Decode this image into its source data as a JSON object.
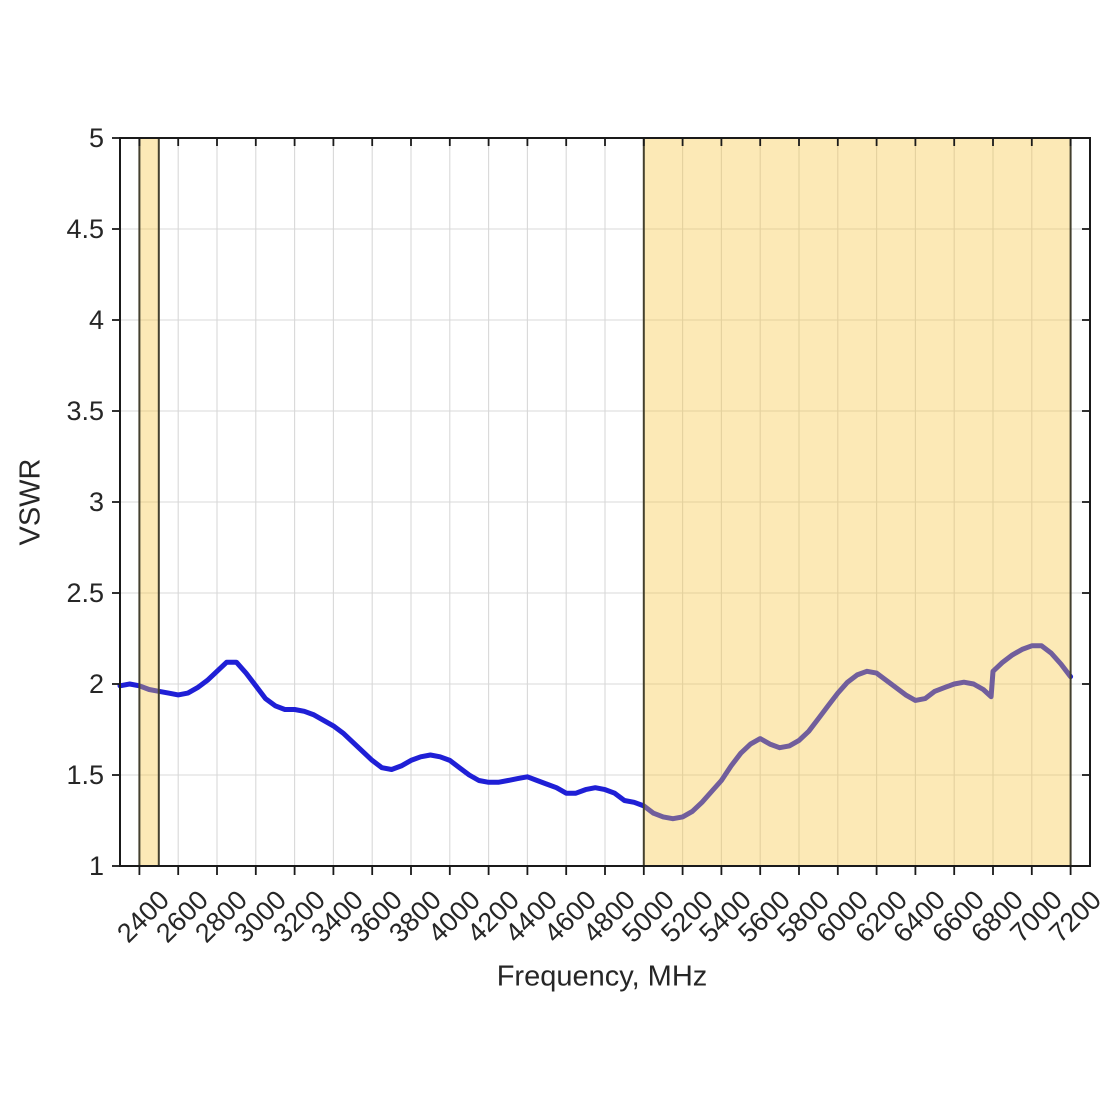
{
  "page": {
    "background": "#ffffff"
  },
  "chart_data": {
    "type": "line",
    "title": "",
    "xlabel": "Frequency, MHz",
    "ylabel": "VSWR",
    "xlim": [
      2300,
      7300
    ],
    "ylim": [
      1,
      5
    ],
    "xticks": [
      2400,
      2600,
      2800,
      3000,
      3200,
      3400,
      3600,
      3800,
      4000,
      4200,
      4400,
      4600,
      4800,
      5000,
      5200,
      5400,
      5600,
      5800,
      6000,
      6200,
      6400,
      6600,
      6800,
      7000,
      7200
    ],
    "yticks": [
      1,
      1.5,
      2,
      2.5,
      3,
      3.5,
      4,
      4.5,
      5
    ],
    "grid": true,
    "legend": "none",
    "series": [
      {
        "name": "VSWR",
        "color": "#1f1fd6",
        "width": 5,
        "points": [
          [
            2300,
            1.99
          ],
          [
            2350,
            2.0
          ],
          [
            2400,
            1.99
          ],
          [
            2450,
            1.97
          ],
          [
            2500,
            1.96
          ],
          [
            2550,
            1.95
          ],
          [
            2600,
            1.94
          ],
          [
            2650,
            1.95
          ],
          [
            2700,
            1.98
          ],
          [
            2750,
            2.02
          ],
          [
            2800,
            2.07
          ],
          [
            2850,
            2.12
          ],
          [
            2900,
            2.12
          ],
          [
            2950,
            2.06
          ],
          [
            3000,
            1.99
          ],
          [
            3050,
            1.92
          ],
          [
            3100,
            1.88
          ],
          [
            3150,
            1.86
          ],
          [
            3200,
            1.86
          ],
          [
            3250,
            1.85
          ],
          [
            3300,
            1.83
          ],
          [
            3350,
            1.8
          ],
          [
            3400,
            1.77
          ],
          [
            3450,
            1.73
          ],
          [
            3500,
            1.68
          ],
          [
            3550,
            1.63
          ],
          [
            3600,
            1.58
          ],
          [
            3650,
            1.54
          ],
          [
            3700,
            1.53
          ],
          [
            3750,
            1.55
          ],
          [
            3800,
            1.58
          ],
          [
            3850,
            1.6
          ],
          [
            3900,
            1.61
          ],
          [
            3950,
            1.6
          ],
          [
            4000,
            1.58
          ],
          [
            4050,
            1.54
          ],
          [
            4100,
            1.5
          ],
          [
            4150,
            1.47
          ],
          [
            4200,
            1.46
          ],
          [
            4250,
            1.46
          ],
          [
            4300,
            1.47
          ],
          [
            4350,
            1.48
          ],
          [
            4400,
            1.49
          ],
          [
            4450,
            1.47
          ],
          [
            4500,
            1.45
          ],
          [
            4550,
            1.43
          ],
          [
            4600,
            1.4
          ],
          [
            4650,
            1.4
          ],
          [
            4700,
            1.42
          ],
          [
            4750,
            1.43
          ],
          [
            4800,
            1.42
          ],
          [
            4850,
            1.4
          ],
          [
            4900,
            1.36
          ],
          [
            4950,
            1.35
          ],
          [
            5000,
            1.33
          ],
          [
            5050,
            1.29
          ],
          [
            5100,
            1.27
          ],
          [
            5150,
            1.26
          ],
          [
            5200,
            1.27
          ],
          [
            5250,
            1.3
          ],
          [
            5300,
            1.35
          ],
          [
            5350,
            1.41
          ],
          [
            5400,
            1.47
          ],
          [
            5450,
            1.55
          ],
          [
            5500,
            1.62
          ],
          [
            5550,
            1.67
          ],
          [
            5600,
            1.7
          ],
          [
            5650,
            1.67
          ],
          [
            5700,
            1.65
          ],
          [
            5750,
            1.66
          ],
          [
            5800,
            1.69
          ],
          [
            5850,
            1.74
          ],
          [
            5900,
            1.81
          ],
          [
            5950,
            1.88
          ],
          [
            6000,
            1.95
          ],
          [
            6050,
            2.01
          ],
          [
            6100,
            2.05
          ],
          [
            6150,
            2.07
          ],
          [
            6200,
            2.06
          ],
          [
            6250,
            2.02
          ],
          [
            6300,
            1.98
          ],
          [
            6350,
            1.94
          ],
          [
            6400,
            1.91
          ],
          [
            6450,
            1.92
          ],
          [
            6500,
            1.96
          ],
          [
            6550,
            1.98
          ],
          [
            6600,
            2.0
          ],
          [
            6650,
            2.01
          ],
          [
            6700,
            2.0
          ],
          [
            6750,
            1.97
          ],
          [
            6790,
            1.93
          ],
          [
            6800,
            2.07
          ],
          [
            6850,
            2.12
          ],
          [
            6900,
            2.16
          ],
          [
            6950,
            2.19
          ],
          [
            7000,
            2.21
          ],
          [
            7050,
            2.21
          ],
          [
            7100,
            2.17
          ],
          [
            7150,
            2.11
          ],
          [
            7200,
            2.04
          ]
        ]
      }
    ],
    "regions": [
      {
        "name": "band-2400-2500",
        "from": 2400,
        "to": 2500,
        "fill": "rgba(247,196,62,0.38)",
        "edge": "#44402e"
      },
      {
        "name": "band-5000-7200",
        "from": 5000,
        "to": 7200,
        "fill": "rgba(247,196,62,0.38)",
        "edge": "#44402e"
      }
    ],
    "colors": {
      "axis": "#1a1a1a",
      "grid": "#d8d8d8",
      "background": "#ffffff",
      "line": "#1f1fd6",
      "band_fill": "rgba(247,196,62,0.38)",
      "band_edge": "#44402e",
      "text": "#262626"
    }
  }
}
